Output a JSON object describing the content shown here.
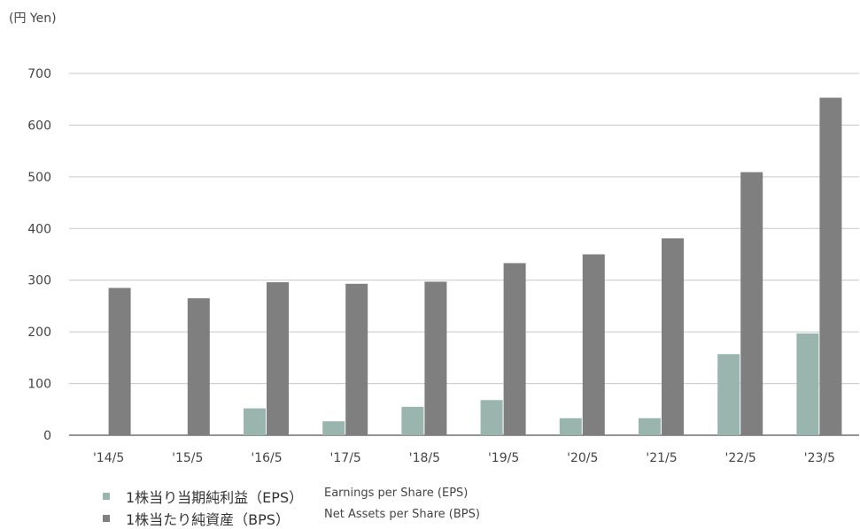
{
  "chart_data": {
    "type": "bar",
    "unit_label": "(円 Yen)",
    "categories": [
      "'14/5",
      "'15/5",
      "'16/5",
      "'17/5",
      "'18/5",
      "'19/5",
      "'20/5",
      "'21/5",
      "'22/5",
      "'23/5"
    ],
    "series": [
      {
        "name": "1株当り当期純利益（EPS）",
        "name_en": "Earnings per Share (EPS)",
        "color": "#9ab5ad",
        "values": [
          0,
          0,
          52,
          27,
          55,
          68,
          33,
          33,
          157,
          197
        ]
      },
      {
        "name": "1株当たり純資産（BPS）",
        "name_en": "Net Assets per Share (BPS)",
        "color": "#7f7f7f",
        "values": [
          285,
          265,
          296,
          293,
          297,
          333,
          350,
          381,
          509,
          653
        ]
      }
    ],
    "yticks": [
      0,
      100,
      200,
      300,
      400,
      500,
      600,
      700
    ],
    "ylim": [
      0,
      700
    ],
    "grid": true,
    "legend_position": "bottom-left"
  }
}
